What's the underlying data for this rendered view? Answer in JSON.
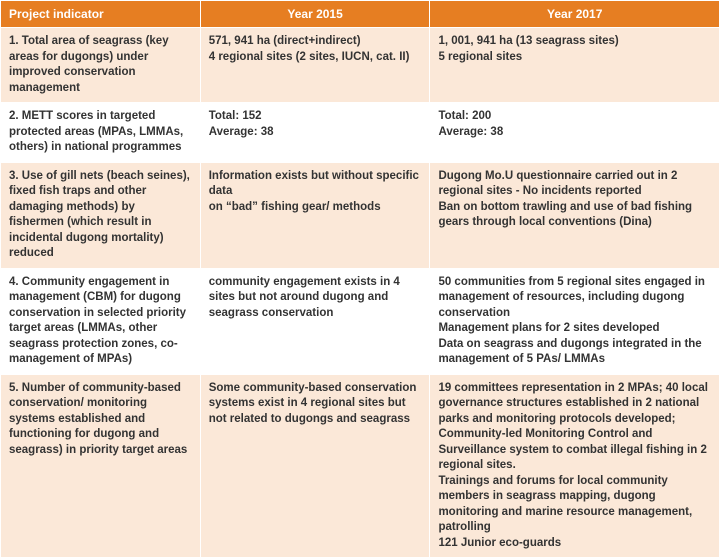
{
  "table": {
    "headers": [
      "Project indicator",
      "Year 2015",
      "Year 2017"
    ],
    "rows": [
      {
        "band": "a",
        "indicator": "1. Total area of seagrass (key areas for dugongs) under improved conservation management",
        "y2015": "571, 941 ha (direct+indirect)\n4 regional sites (2 sites, IUCN, cat. II)",
        "y2017": "1, 001, 941 ha (13 seagrass sites)\n5 regional sites"
      },
      {
        "band": "b",
        "indicator": "2. METT scores in targeted protected areas (MPAs, LMMAs, others) in national programmes",
        "y2015": "Total: 152\nAverage: 38",
        "y2017": "Total: 200\nAverage: 38"
      },
      {
        "band": "a",
        "indicator": "3. Use of gill nets (beach seines), fixed fish traps and other damaging methods) by fishermen (which result in incidental dugong mortality) reduced",
        "y2015": "Information exists but without specific data\non “bad” fishing gear/ methods",
        "y2017": "Dugong Mo.U questionnaire carried out in 2 regional sites - No incidents reported\nBan on bottom trawling and use of bad fishing gears through local conventions (Dina)"
      },
      {
        "band": "b",
        "indicator": "4. Community engagement in management (CBM) for dugong conservation in selected priority target areas (LMMAs, other seagrass protection zones, co-management of MPAs)",
        "y2015": "community engagement exists in 4 sites but not around dugong and seagrass conservation",
        "y2017": "50 communities from 5 regional sites engaged in management of resources, including dugong conservation\nManagement plans for 2 sites developed\nData on seagrass and dugongs integrated in the management of 5 PAs/ LMMAs"
      },
      {
        "band": "a",
        "indicator": "5. Number of community-based conservation/ monitoring systems established and functioning for dugong and seagrass) in priority target areas",
        "y2015": "Some community-based conservation systems exist in 4 regional sites but not related to dugongs and seagrass",
        "y2017": "19 committees representation in 2 MPAs; 40 local governance structures established in 2 national parks and monitoring protocols developed;\nCommunity-led Monitoring Control and Surveillance system to combat illegal fishing in 2 regional sites.\nTrainings and forums for local community members in seagrass mapping, dugong monitoring and marine resource management, patrolling\n121 Junior eco-guards"
      }
    ]
  },
  "colors": {
    "header_bg": "#e67e22",
    "band_a": "#fbe8d8",
    "band_b": "#ffffff"
  }
}
